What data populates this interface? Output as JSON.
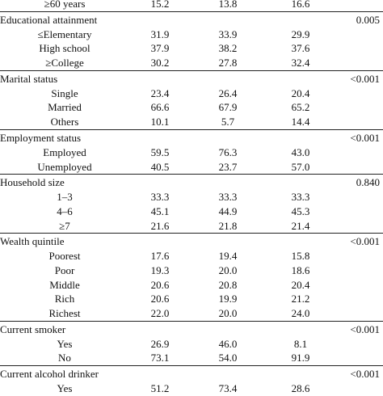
{
  "sections": [
    {
      "title": "",
      "p": "",
      "rows": [
        {
          "label": "≥60 years",
          "v": [
            "15.2",
            "13.8",
            "16.6"
          ]
        }
      ]
    },
    {
      "title": "Educational attainment",
      "p": "0.005",
      "rows": [
        {
          "label": "≤Elementary",
          "v": [
            "31.9",
            "33.9",
            "29.9"
          ]
        },
        {
          "label": "High school",
          "v": [
            "37.9",
            "38.2",
            "37.6"
          ]
        },
        {
          "label": "≥College",
          "v": [
            "30.2",
            "27.8",
            "32.4"
          ]
        }
      ]
    },
    {
      "title": "Marital status",
      "p": "<0.001",
      "rows": [
        {
          "label": "Single",
          "v": [
            "23.4",
            "26.4",
            "20.4"
          ]
        },
        {
          "label": "Married",
          "v": [
            "66.6",
            "67.9",
            "65.2"
          ]
        },
        {
          "label": "Others",
          "v": [
            "10.1",
            "5.7",
            "14.4"
          ]
        }
      ]
    },
    {
      "title": "Employment status",
      "p": "<0.001",
      "rows": [
        {
          "label": "Employed",
          "v": [
            "59.5",
            "76.3",
            "43.0"
          ]
        },
        {
          "label": "Unemployed",
          "v": [
            "40.5",
            "23.7",
            "57.0"
          ]
        }
      ]
    },
    {
      "title": "Household size",
      "p": "0.840",
      "rows": [
        {
          "label": "1–3",
          "v": [
            "33.3",
            "33.3",
            "33.3"
          ]
        },
        {
          "label": "4–6",
          "v": [
            "45.1",
            "44.9",
            "45.3"
          ]
        },
        {
          "label": "≥7",
          "v": [
            "21.6",
            "21.8",
            "21.4"
          ]
        }
      ]
    },
    {
      "title": "Wealth quintile",
      "p": "<0.001",
      "rows": [
        {
          "label": "Poorest",
          "v": [
            "17.6",
            "19.4",
            "15.8"
          ]
        },
        {
          "label": "Poor",
          "v": [
            "19.3",
            "20.0",
            "18.6"
          ]
        },
        {
          "label": "Middle",
          "v": [
            "20.6",
            "20.8",
            "20.4"
          ]
        },
        {
          "label": "Rich",
          "v": [
            "20.6",
            "19.9",
            "21.2"
          ]
        },
        {
          "label": "Richest",
          "v": [
            "22.0",
            "20.0",
            "24.0"
          ]
        }
      ]
    },
    {
      "title": "Current smoker",
      "p": "<0.001",
      "rows": [
        {
          "label": "Yes",
          "v": [
            "26.9",
            "46.0",
            "8.1"
          ]
        },
        {
          "label": "No",
          "v": [
            "73.1",
            "54.0",
            "91.9"
          ]
        }
      ]
    },
    {
      "title": "Current alcohol drinker",
      "p": "<0.001",
      "rows": [
        {
          "label": "Yes",
          "v": [
            "51.2",
            "73.4",
            "28.6"
          ]
        }
      ]
    }
  ]
}
